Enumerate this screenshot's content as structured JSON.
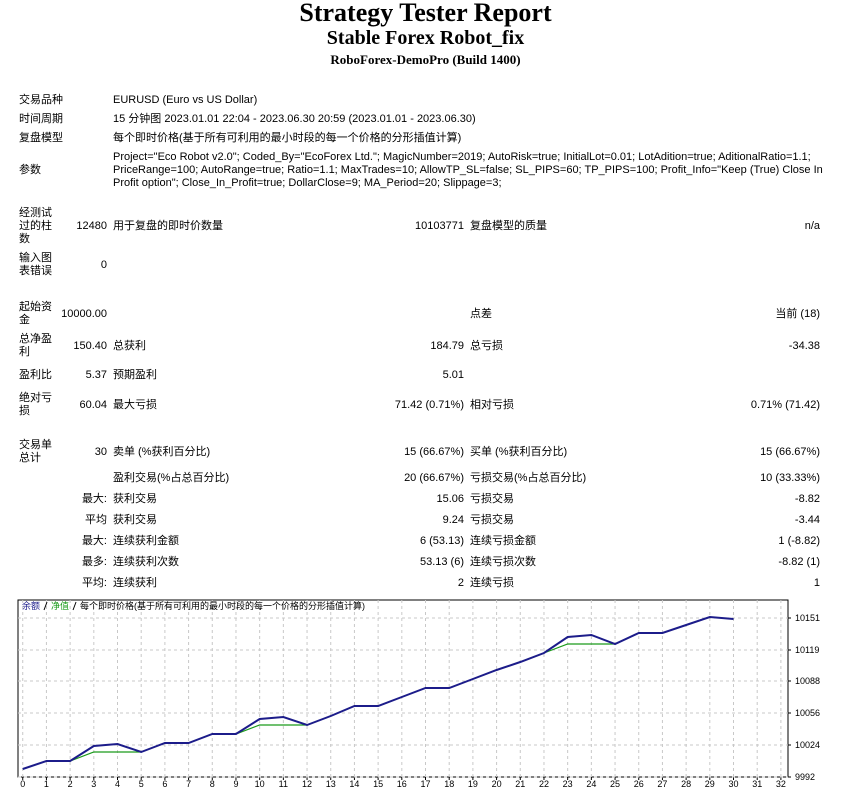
{
  "header": {
    "title": "Strategy Tester Report",
    "subtitle": "Stable Forex Robot_fix",
    "build": "RoboForex-DemoPro (Build 1400)"
  },
  "info": [
    {
      "label": "交易品种",
      "text": "EURUSD (Euro vs US Dollar)"
    },
    {
      "label": "时间周期",
      "text": "15 分钟图 2023.01.01 22:04 - 2023.06.30 20:59 (2023.01.01 - 2023.06.30)"
    },
    {
      "label": "复盘模型",
      "text": "每个即时价格(基于所有可利用的最小时段的每一个价格的分形插值计算)"
    },
    {
      "label": "参数",
      "text": "Project=\"Eco Robot v2.0\"; Coded_By=\"EcoForex Ltd.\"; MagicNumber=2019; AutoRisk=true; InitialLot=0.01; LotAdition=true; AditionalRatio=1.1; PriceRange=100; AutoRange=true; Ratio=1.1; MaxTrades=10; AllowTP_SL=false; SL_PIPS=60; TP_PIPS=100; Profit_Info=\"Keep (True) Close In Profit option\"; Close_In_Profit=true; DollarClose=9; MA_Period=20; Slippage=3;"
    }
  ],
  "stats": [
    [
      {
        "label": "经测试过的柱数",
        "value": "12480",
        "label2": "用于复盘的即时价数量",
        "value2": "10103771",
        "label3": "复盘模型的质量",
        "value3": "n/a"
      },
      {
        "label": "输入图表错误",
        "value": "0"
      }
    ],
    [
      {
        "label": "起始资金",
        "value": "10000.00",
        "label3": "点差",
        "value3": "当前 (18)"
      },
      {
        "label": "总净盈利",
        "value": "150.40",
        "label2": "总获利",
        "value2": "184.79",
        "label3": "总亏损",
        "value3": "-34.38"
      },
      {
        "label": "盈利比",
        "value": "5.37",
        "label2": "预期盈利",
        "value2": "5.01"
      },
      {
        "label": "绝对亏损",
        "value": "60.04",
        "label2": "最大亏损",
        "value2": "71.42 (0.71%)",
        "label3": "相对亏损",
        "value3": "0.71% (71.42)"
      }
    ],
    [
      {
        "label": "交易单总计",
        "value": "30",
        "label2": "卖单 (%获利百分比)",
        "value2": "15 (66.67%)",
        "label3": "买单 (%获利百分比)",
        "value3": "15 (66.67%)"
      },
      {
        "label2": "盈利交易(%占总百分比)",
        "value2": "20 (66.67%)",
        "label3": "亏损交易(%占总百分比)",
        "value3": "10 (33.33%)"
      },
      {
        "value": "最大:",
        "label2": "获利交易",
        "value2": "15.06",
        "label3": "亏损交易",
        "value3": "-8.82"
      },
      {
        "value": "平均",
        "label2": "获利交易",
        "value2": "9.24",
        "label3": "亏损交易",
        "value3": "-3.44"
      },
      {
        "value": "最大:",
        "label2": "连续获利金额",
        "value2": "6 (53.13)",
        "label3": "连续亏损金额",
        "value3": "1 (-8.82)"
      },
      {
        "value": "最多:",
        "label2": "连续获利次数",
        "value2": "53.13 (6)",
        "label3": "连续亏损次数",
        "value3": "-8.82 (1)"
      },
      {
        "value": "平均:",
        "label2": "连续获利",
        "value2": "2",
        "label3": "连续亏损",
        "value3": "1"
      }
    ]
  ],
  "chart_data": {
    "type": "line",
    "caption": "每个即时价格(基于所有可利用的最小时段的每一个价格的分形插值计算)",
    "x": [
      0,
      1,
      2,
      3,
      4,
      5,
      6,
      7,
      8,
      9,
      10,
      11,
      12,
      13,
      14,
      15,
      16,
      17,
      18,
      19,
      20,
      21,
      22,
      23,
      24,
      25,
      26,
      27,
      28,
      29,
      30
    ],
    "series": [
      {
        "name": "余额",
        "color": "#1c1c8a",
        "values": [
          10000,
          10008,
          10008,
          10023,
          10025,
          10017,
          10026,
          10026,
          10035,
          10035,
          10050,
          10052,
          10044,
          10053,
          10063,
          10063,
          10072,
          10081,
          10081,
          10090,
          10099,
          10107,
          10116,
          10132,
          10134,
          10125,
          10136,
          10136,
          10144,
          10152,
          10150
        ]
      },
      {
        "name": "净值",
        "color": "#1a9a1a",
        "values": [
          10000,
          10008,
          10008,
          10017,
          10017,
          10017,
          10026,
          10026,
          10035,
          10035,
          10044,
          10044,
          10044,
          10053,
          10063,
          10063,
          10072,
          10081,
          10081,
          10090,
          10099,
          10107,
          10116,
          10125,
          10125,
          10125,
          10136,
          10136,
          10144,
          10152,
          10150
        ]
      }
    ],
    "xlim": [
      -0.2,
      32.3
    ],
    "ylim": [
      9992,
      10169
    ],
    "xticks": [
      0,
      1,
      2,
      3,
      4,
      5,
      6,
      7,
      8,
      9,
      10,
      11,
      12,
      13,
      14,
      15,
      16,
      17,
      18,
      19,
      20,
      21,
      22,
      23,
      24,
      25,
      26,
      27,
      28,
      29,
      30,
      31,
      32
    ],
    "yticks": [
      9992,
      10024,
      10056,
      10088,
      10119,
      10151
    ],
    "grid": true
  }
}
